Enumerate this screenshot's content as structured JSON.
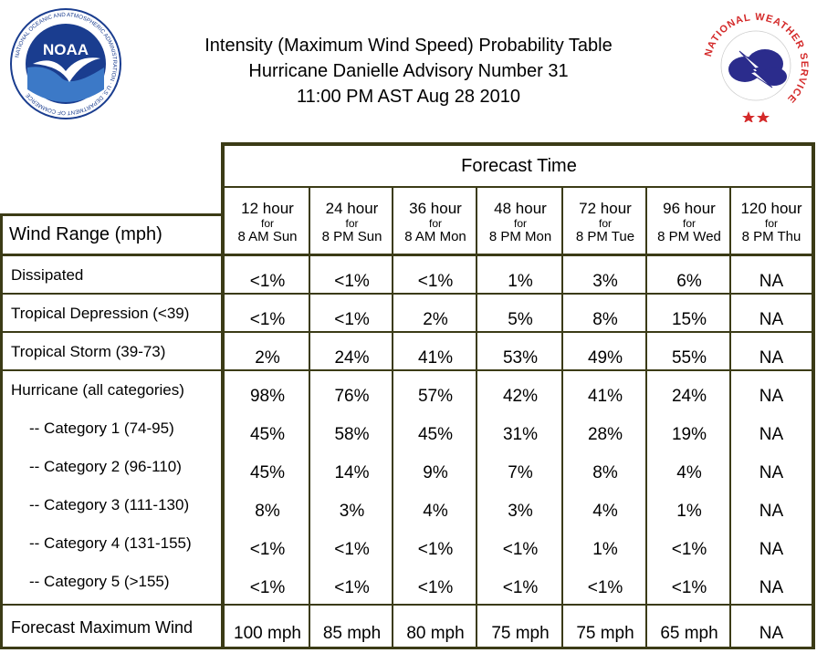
{
  "title": {
    "line1": "Intensity (Maximum Wind Speed) Probability Table",
    "line2": "Hurricane Danielle Advisory Number 31",
    "line3": "11:00 PM AST Aug 28 2010"
  },
  "logos": {
    "noaa_text": "NOAA",
    "noaa_ring": "NATIONAL OCEANIC AND ATMOSPHERIC ADMINISTRATION · U.S. DEPARTMENT OF COMMERCE",
    "nws_ring": "NATIONAL WEATHER SERVICE"
  },
  "table": {
    "forecast_header": "Forecast Time",
    "row_header": "Wind Range (mph)",
    "columns": [
      {
        "hours": "12 hour",
        "for": "for",
        "time": "8 AM Sun"
      },
      {
        "hours": "24 hour",
        "for": "for",
        "time": "8 PM Sun"
      },
      {
        "hours": "36 hour",
        "for": "for",
        "time": "8 AM Mon"
      },
      {
        "hours": "48 hour",
        "for": "for",
        "time": "8 PM Mon"
      },
      {
        "hours": "72 hour",
        "for": "for",
        "time": "8 PM Tue"
      },
      {
        "hours": "96 hour",
        "for": "for",
        "time": "8 PM Wed"
      },
      {
        "hours": "120 hour",
        "for": "for",
        "time": "8 PM Thu"
      }
    ],
    "rows": [
      {
        "label": "Dissipated",
        "values": [
          "<1%",
          "<1%",
          "<1%",
          "1%",
          "3%",
          "6%",
          "NA"
        ]
      },
      {
        "label": "Tropical Depression (<39)",
        "values": [
          "<1%",
          "<1%",
          "2%",
          "5%",
          "8%",
          "15%",
          "NA"
        ]
      },
      {
        "label": "Tropical Storm (39-73)",
        "values": [
          "2%",
          "24%",
          "41%",
          "53%",
          "49%",
          "55%",
          "NA"
        ]
      },
      {
        "label": "Hurricane (all categories)",
        "values": [
          "98%",
          "76%",
          "57%",
          "42%",
          "41%",
          "24%",
          "NA"
        ]
      },
      {
        "label": "-- Category 1 (74-95)",
        "values": [
          "45%",
          "58%",
          "45%",
          "31%",
          "28%",
          "19%",
          "NA"
        ]
      },
      {
        "label": "-- Category 2 (96-110)",
        "values": [
          "45%",
          "14%",
          "9%",
          "7%",
          "8%",
          "4%",
          "NA"
        ]
      },
      {
        "label": "-- Category 3 (111-130)",
        "values": [
          "8%",
          "3%",
          "4%",
          "3%",
          "4%",
          "1%",
          "NA"
        ]
      },
      {
        "label": "-- Category 4 (131-155)",
        "values": [
          "<1%",
          "<1%",
          "<1%",
          "<1%",
          "1%",
          "<1%",
          "NA"
        ]
      },
      {
        "label": "-- Category 5 (>155)",
        "values": [
          "<1%",
          "<1%",
          "<1%",
          "<1%",
          "<1%",
          "<1%",
          "NA"
        ]
      },
      {
        "label": "Forecast Maximum Wind",
        "values": [
          "100 mph",
          "85 mph",
          "80 mph",
          "75 mph",
          "75 mph",
          "65 mph",
          "NA"
        ]
      }
    ]
  },
  "colors": {
    "border": "#3b3b16",
    "noaa_blue": "#1a3d8f",
    "nws_red": "#d42a2a",
    "nws_cloud": "#2b2c8c"
  }
}
